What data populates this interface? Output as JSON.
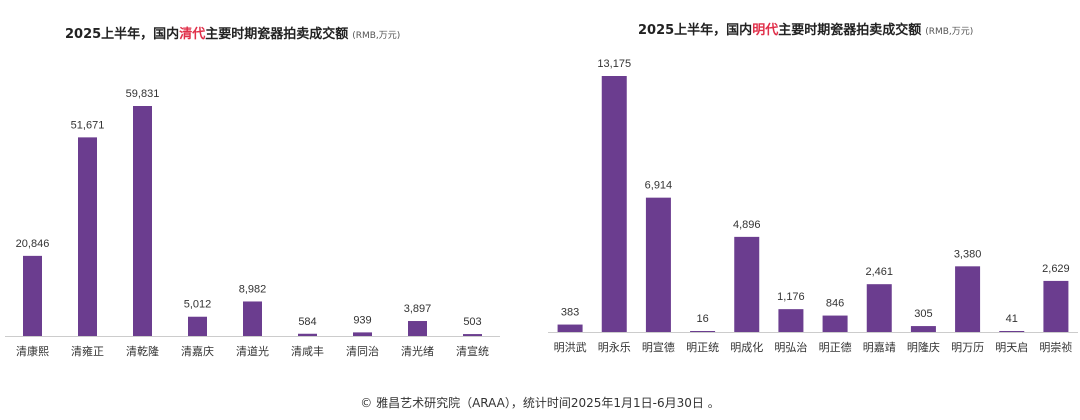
{
  "colors": {
    "bar": "#6b3d8f",
    "highlight": "#e0304a",
    "axis": "#cccccc"
  },
  "chart_data": [
    {
      "type": "bar",
      "title_prefix": "2025上半年，国内",
      "title_highlight": "清代",
      "title_suffix": "主要时期瓷器拍卖成交额",
      "unit": "(RMB,万元)",
      "categories": [
        "清康熙",
        "清雍正",
        "清乾隆",
        "清嘉庆",
        "清道光",
        "清咸丰",
        "清同治",
        "清光绪",
        "清宣统"
      ],
      "values": [
        20846,
        51671,
        59831,
        5012,
        8982,
        584,
        939,
        3897,
        503
      ],
      "labels": [
        "20,846",
        "51,671",
        "59,831",
        "5,012",
        "8,982",
        "584",
        "939",
        "3,897",
        "503"
      ],
      "ylim": [
        0,
        59831
      ]
    },
    {
      "type": "bar",
      "title_prefix": "2025上半年，国内",
      "title_highlight": "明代",
      "title_suffix": "主要时期瓷器拍卖成交额",
      "unit": "(RMB,万元)",
      "categories": [
        "明洪武",
        "明永乐",
        "明宣德",
        "明正统",
        "明成化",
        "明弘治",
        "明正德",
        "明嘉靖",
        "明隆庆",
        "明万历",
        "明天启",
        "明崇祯"
      ],
      "values": [
        383,
        13175,
        6914,
        16,
        4896,
        1176,
        846,
        2461,
        305,
        3380,
        41,
        2629
      ],
      "labels": [
        "383",
        "13,175",
        "6,914",
        "16",
        "4,896",
        "1,176",
        "846",
        "2,461",
        "305",
        "3,380",
        "41",
        "2,629"
      ],
      "ylim": [
        0,
        13175
      ]
    }
  ],
  "footer": "© 雅昌艺术研究院（ARAA），统计时间2025年1月1日-6月30日 。"
}
